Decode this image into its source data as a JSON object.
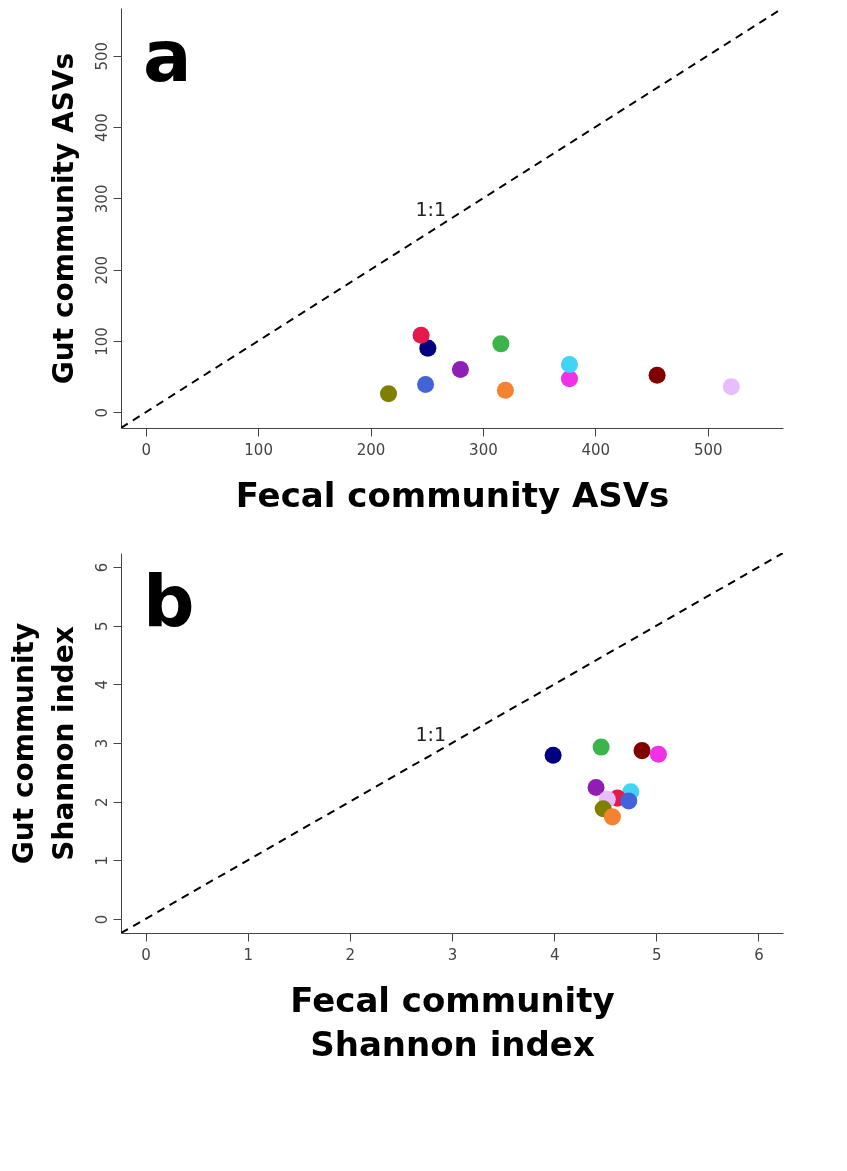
{
  "chart_data": [
    {
      "type": "scatter",
      "xlabel": "Fecal community ASVs",
      "ylabel": "Gut community ASVs",
      "xlim": [
        -22,
        567
      ],
      "ylim": [
        -22,
        567
      ],
      "xticks": [
        0,
        100,
        200,
        300,
        400,
        500
      ],
      "yticks": [
        0,
        100,
        200,
        300,
        400,
        500
      ],
      "grid": false,
      "legend": false,
      "annotations": [
        "a"
      ],
      "series": [
        {
          "marker": "circle",
          "x": [
            251,
            316,
            455,
            377,
            280,
            377,
            245,
            249,
            521,
            216,
            320
          ],
          "values": [
            90,
            96,
            52,
            47,
            60,
            67,
            108,
            39,
            36,
            26,
            31
          ],
          "colors": [
            "#000080",
            "#3cb44b",
            "#800000",
            "#f032e6",
            "#911eb4",
            "#42d4f4",
            "#e6194b",
            "#4363d8",
            "#e6beff",
            "#808000",
            "#f58231"
          ]
        },
        {
          "type": "line",
          "name": "1:1",
          "x": [
            -22,
            567
          ],
          "values": [
            -22,
            567
          ],
          "color": "#000000",
          "line_style": "dashed"
        }
      ]
    },
    {
      "type": "scatter",
      "xlabel": "Fecal community\nShannon index",
      "ylabel": "Gut community\nShannon index",
      "xlim": [
        -0.24,
        6.24
      ],
      "ylim": [
        -0.24,
        6.24
      ],
      "xticks": [
        0,
        1,
        2,
        3,
        4,
        5,
        6
      ],
      "yticks": [
        0,
        1,
        2,
        3,
        4,
        5,
        6
      ],
      "grid": false,
      "legend": false,
      "annotations": [
        "b"
      ],
      "series": [
        {
          "marker": "circle",
          "x": [
            3.99,
            4.46,
            4.86,
            5.02,
            4.41,
            4.75,
            4.62,
            4.73,
            4.52,
            4.48,
            4.57
          ],
          "values": [
            2.79,
            2.93,
            2.87,
            2.81,
            2.24,
            2.17,
            2.06,
            2.01,
            2.04,
            1.88,
            1.74
          ],
          "colors": [
            "#000080",
            "#3cb44b",
            "#800000",
            "#f032e6",
            "#911eb4",
            "#42d4f4",
            "#e6194b",
            "#4363d8",
            "#e6beff",
            "#808000",
            "#f58231"
          ]
        },
        {
          "type": "line",
          "name": "1:1",
          "x": [
            -0.24,
            6.24
          ],
          "values": [
            -0.24,
            6.24
          ],
          "color": "#000000",
          "line_style": "dashed"
        }
      ]
    }
  ]
}
